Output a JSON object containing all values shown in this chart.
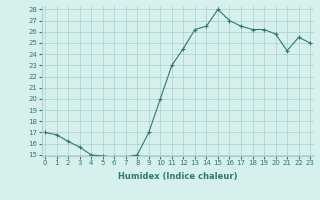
{
  "title": "",
  "xlabel": "Humidex (Indice chaleur)",
  "x_values": [
    0,
    1,
    2,
    3,
    4,
    5,
    6,
    7,
    8,
    9,
    10,
    11,
    12,
    13,
    14,
    15,
    16,
    17,
    18,
    19,
    20,
    21,
    22,
    23
  ],
  "y_values": [
    17.0,
    16.8,
    16.2,
    15.7,
    15.0,
    14.9,
    14.8,
    14.8,
    15.0,
    17.0,
    20.0,
    23.0,
    24.5,
    26.2,
    26.5,
    28.0,
    27.0,
    26.5,
    26.2,
    26.2,
    25.8,
    24.3,
    25.5,
    25.0
  ],
  "line_color": "#2d7a6e",
  "marker": "+",
  "marker_color": "#2d7a6e",
  "bg_color": "#d6f0ee",
  "grid_color": "#a8cfc9",
  "tick_label_color": "#2d7a6e",
  "ylim": [
    15,
    28
  ],
  "yticks": [
    15,
    16,
    17,
    18,
    19,
    20,
    21,
    22,
    23,
    24,
    25,
    26,
    27,
    28
  ],
  "xlim": [
    0,
    23
  ],
  "xticks": [
    0,
    1,
    2,
    3,
    4,
    5,
    6,
    7,
    8,
    9,
    10,
    11,
    12,
    13,
    14,
    15,
    16,
    17,
    18,
    19,
    20,
    21,
    22,
    23
  ],
  "xtick_labels": [
    "0",
    "1",
    "2",
    "3",
    "4",
    "5",
    "6",
    "7",
    "8",
    "9",
    "10",
    "11",
    "12",
    "13",
    "14",
    "15",
    "16",
    "17",
    "18",
    "19",
    "20",
    "21",
    "22",
    "23"
  ]
}
